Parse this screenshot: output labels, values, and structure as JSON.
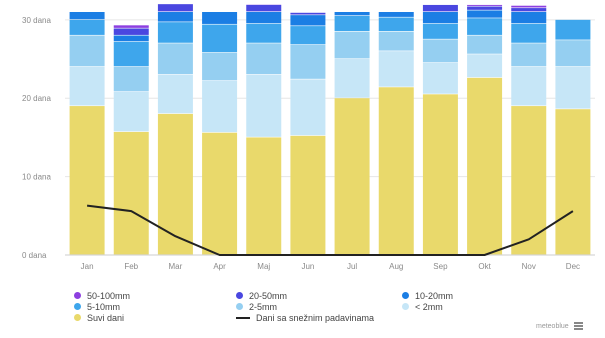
{
  "chart_data": {
    "type": "bar",
    "stacked": true,
    "categories": [
      "Jan",
      "Feb",
      "Mar",
      "Apr",
      "Maj",
      "Jun",
      "Jul",
      "Aug",
      "Sep",
      "Okt",
      "Nov",
      "Dec"
    ],
    "ylim": [
      0,
      31
    ],
    "yticks": [
      0,
      10,
      20,
      30
    ],
    "ytick_labels": [
      "0 dana",
      "10 dana",
      "20 dana",
      "30 dana"
    ],
    "grid": true,
    "legend_position": "bottom",
    "series": [
      {
        "name": "Suvi dani",
        "color": "#e9d96b",
        "values": [
          19,
          15.7,
          18,
          15.6,
          15,
          15.2,
          20,
          21.4,
          20.5,
          22.6,
          19,
          18.6
        ]
      },
      {
        "name": "< 2mm",
        "color": "#c6e6f7",
        "values": [
          5,
          5.1,
          5,
          6.6,
          8,
          7.2,
          5,
          4.6,
          4,
          3,
          5,
          5.4
        ]
      },
      {
        "name": "2-5mm",
        "color": "#95cff1",
        "values": [
          4,
          3.2,
          4,
          3.6,
          4,
          4.4,
          3.5,
          2.5,
          3,
          2.4,
          3,
          3.4
        ]
      },
      {
        "name": "5-10mm",
        "color": "#3ea6ec",
        "values": [
          2,
          3.2,
          2.7,
          3.6,
          2.5,
          2.4,
          2,
          1.8,
          2,
          2.2,
          2.5,
          2.6
        ]
      },
      {
        "name": "10-20mm",
        "color": "#1b7ee4",
        "values": [
          1,
          0.8,
          1.3,
          1.6,
          1.5,
          1.4,
          0.5,
          0.7,
          1.5,
          1,
          1.5,
          0
        ]
      },
      {
        "name": "20-50mm",
        "color": "#4a47e0",
        "values": [
          0,
          0.9,
          1,
          0,
          0.9,
          0.3,
          0,
          0,
          0.9,
          0.5,
          0.5,
          0
        ]
      },
      {
        "name": "50-100mm",
        "color": "#8d3fe0",
        "values": [
          0,
          0.4,
          0,
          0,
          0.1,
          0,
          0,
          0,
          0,
          0.2,
          0.3,
          0
        ]
      }
    ],
    "line_series": {
      "name": "Dani sa snežnim padavinama",
      "color": "#222222",
      "values": [
        6.3,
        5.6,
        2.4,
        0,
        0,
        0,
        0,
        0,
        0,
        0,
        2,
        5.6
      ]
    }
  },
  "legend": {
    "items": [
      {
        "label": "50-100mm",
        "color": "#8d3fe0",
        "kind": "dot"
      },
      {
        "label": "20-50mm",
        "color": "#4a47e0",
        "kind": "dot"
      },
      {
        "label": "10-20mm",
        "color": "#1b7ee4",
        "kind": "dot"
      },
      {
        "label": "5-10mm",
        "color": "#3ea6ec",
        "kind": "dot"
      },
      {
        "label": "2-5mm",
        "color": "#95cff1",
        "kind": "dot"
      },
      {
        "label": "< 2mm",
        "color": "#c6e6f7",
        "kind": "dot"
      },
      {
        "label": "Suvi dani",
        "color": "#e9d96b",
        "kind": "dot"
      },
      {
        "label": "Dani sa snežnim padavinama",
        "color": "#222222",
        "kind": "line"
      }
    ]
  },
  "brand": {
    "text": "meteoblue",
    "menu_icon": "menu-icon"
  }
}
